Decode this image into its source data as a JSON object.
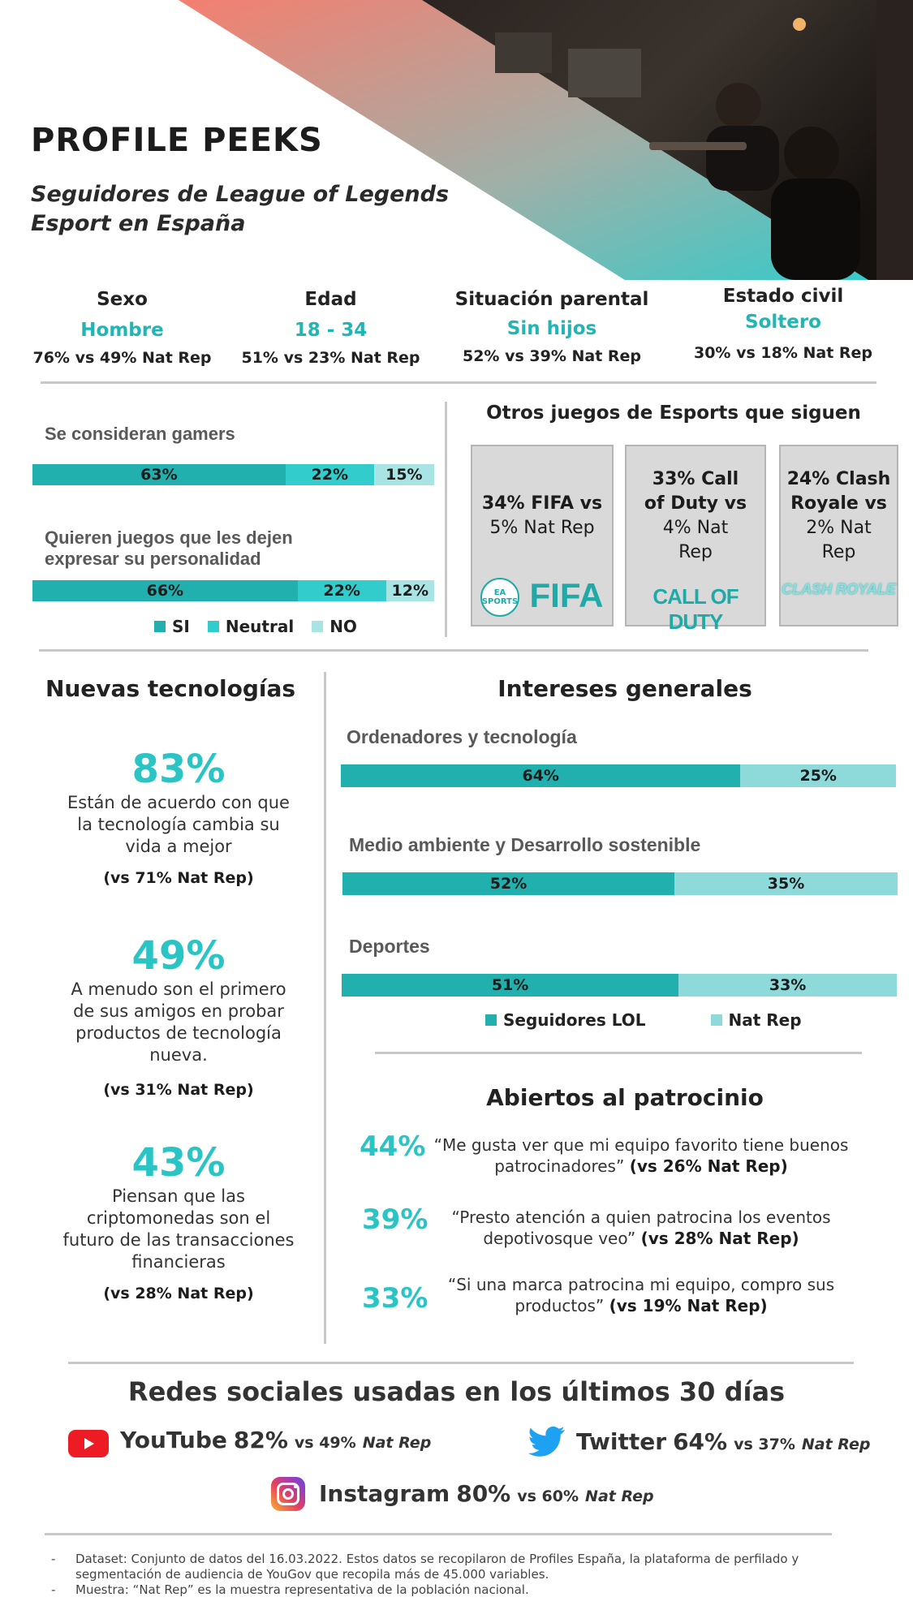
{
  "header": {
    "title": "PROFILE  PEEKS",
    "subtitle_line1": "Seguidores de League of Legends",
    "subtitle_line2": "Esport en España"
  },
  "demographics": [
    {
      "label": "Sexo",
      "value": "Hombre",
      "comparison": "76% vs 49% Nat Rep"
    },
    {
      "label": "Edad",
      "value": "18 - 34",
      "comparison": "51% vs 23% Nat Rep"
    },
    {
      "label": "Situación parental",
      "value": "Sin hijos",
      "comparison": "52% vs 39% Nat Rep"
    },
    {
      "label": "Estado civil",
      "value": "Soltero",
      "comparison": "30% vs 18% Nat Rep"
    }
  ],
  "gamers": {
    "q1_label": "Se consideran gamers",
    "q1_values": [
      "63%",
      "22%",
      "15%"
    ],
    "q1_fractions": [
      0.63,
      0.22,
      0.15
    ],
    "q2_label_line1": "Quieren juegos que les dejen",
    "q2_label_line2": "expresar su personalidad",
    "q2_values": [
      "66%",
      "22%",
      "12%"
    ],
    "q2_fractions": [
      0.66,
      0.22,
      0.12
    ],
    "legend": [
      "SI",
      "Neutral",
      "NO"
    ],
    "colors": [
      "#21b0ad",
      "#33cccc",
      "#a9e4e4"
    ]
  },
  "other_esports": {
    "title": "Otros juegos de Esports que siguen",
    "cards": [
      {
        "line1": "34% FIFA vs",
        "line2": "5% Nat Rep",
        "line3": "",
        "line4": "",
        "logo": "FIFA",
        "logo_prefix": "EA SPORTS"
      },
      {
        "line1": "33% Call",
        "line2": "of Duty vs",
        "line3": "4% Nat",
        "line4": "Rep",
        "logo": "CALL OF DUTY",
        "logo_prefix": ""
      },
      {
        "line1": "24% Clash",
        "line2": "Royale vs",
        "line3": "2% Nat",
        "line4": "Rep",
        "logo": "CLASH ROYALE",
        "logo_prefix": ""
      }
    ]
  },
  "new_tech": {
    "title": "Nuevas tecnologías",
    "items": [
      {
        "pct": "83%",
        "desc": [
          "Están de acuerdo con que",
          "la tecnología cambia su",
          "vida a mejor"
        ],
        "vs": "(vs 71% Nat Rep)"
      },
      {
        "pct": "49%",
        "desc": [
          "A menudo son el primero",
          "de sus amigos en probar",
          "productos de tecnología",
          "nueva."
        ],
        "vs": "(vs 31% Nat Rep)"
      },
      {
        "pct": "43%",
        "desc": [
          "Piensan que las",
          "criptomonedas son el",
          "futuro de las transacciones",
          "financieras"
        ],
        "vs": "(vs 28% Nat Rep)"
      }
    ]
  },
  "interests": {
    "title": "Intereses generales",
    "items": [
      {
        "label": "Ordenadores y tecnología",
        "lol": "64%",
        "nat": "25%"
      },
      {
        "label": "Medio ambiente y Desarrollo sostenible",
        "lol": "52%",
        "nat": "35%"
      },
      {
        "label": "Deportes",
        "lol": "51%",
        "nat": "33%"
      }
    ],
    "legend_lol": "Seguidores LOL",
    "legend_nat": "Nat Rep"
  },
  "sponsorship": {
    "title": "Abiertos al patrocinio",
    "items": [
      {
        "pct": "44%",
        "quote1": "“Me gusta ver que mi equipo favorito tiene buenos",
        "quote2": "patrocinadores”",
        "vs": "(vs 26% Nat Rep)"
      },
      {
        "pct": "39%",
        "quote1": "“Presto atención a quien patrocina los eventos",
        "quote2": "depotivosque veo”",
        "vs": "(vs 28% Nat Rep)"
      },
      {
        "pct": "33%",
        "quote1": "“Si una marca patrocina mi equipo, compro sus",
        "quote2": "productos”",
        "vs": "(vs 19% Nat Rep)"
      }
    ]
  },
  "social": {
    "title": "Redes sociales usadas en los últimos 30 días",
    "youtube": {
      "name": "YouTube",
      "pct": "82%",
      "vs": "vs 49%",
      "nat": "Nat Rep"
    },
    "twitter": {
      "name": "Twitter",
      "pct": "64%",
      "vs": "vs 37%",
      "nat": "Nat Rep"
    },
    "instagram": {
      "name": "Instagram",
      "pct": "80%",
      "vs": "vs 60%",
      "nat": "Nat Rep"
    }
  },
  "footer": {
    "line1": "Dataset: Conjunto de datos del 16.03.2022. Estos datos se recopilaron de Profiles España, la plataforma de perfilado y",
    "line2": "segmentación de audiencia de YouGov que recopila más de 45.000 variables.",
    "line3": "Muestra: “Nat Rep” es la muestra representativa de la población nacional."
  }
}
